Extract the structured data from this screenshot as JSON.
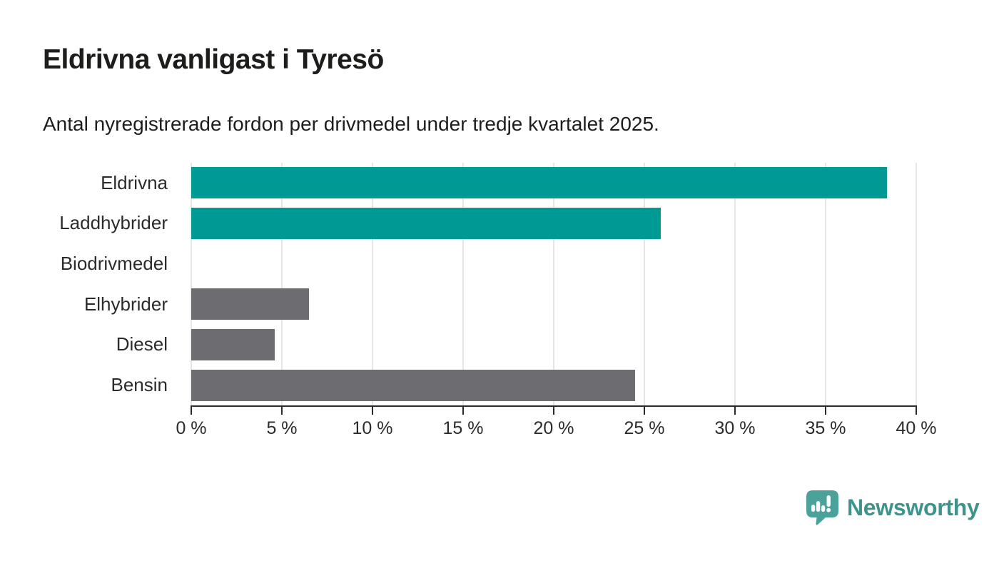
{
  "title": "Eldrivna vanligast i Tyresö",
  "subtitle": "Antal nyregistrerade fordon per drivmedel under tredje kvartalet 2025.",
  "chart_data": {
    "type": "bar",
    "orientation": "horizontal",
    "title": "Eldrivna vanligast i Tyresö",
    "subtitle": "Antal nyregistrerade fordon per drivmedel under tredje kvartalet 2025.",
    "categories": [
      "Eldrivna",
      "Laddhybrider",
      "Biodrivmedel",
      "Elhybrider",
      "Diesel",
      "Bensin"
    ],
    "values": [
      38.4,
      25.9,
      0,
      6.5,
      4.6,
      24.5
    ],
    "unit": "%",
    "bar_colors": [
      "#009a94",
      "#009a94",
      "#6c6c71",
      "#6c6c71",
      "#6c6c71",
      "#6c6c71"
    ],
    "xlim": [
      0,
      40
    ],
    "x_tick_values": [
      0,
      5,
      10,
      15,
      20,
      25,
      30,
      35,
      40
    ],
    "x_tick_labels": [
      "0 %",
      "5 %",
      "10 %",
      "15 %",
      "20 %",
      "25 %",
      "30 %",
      "35 %",
      "40 %"
    ],
    "grid": true,
    "legend": "none"
  },
  "colors": {
    "accent_teal": "#009a94",
    "neutral_gray": "#6c6c71",
    "grid": "#e6e6e6",
    "axis": "#2b2b2b",
    "text": "#1d1d1b",
    "logo_icon": "#4ba29b",
    "logo_text": "#3e948d"
  },
  "branding": {
    "logo_text": "Newsworthy",
    "logo_icon": "bar-chart-pin-icon"
  }
}
